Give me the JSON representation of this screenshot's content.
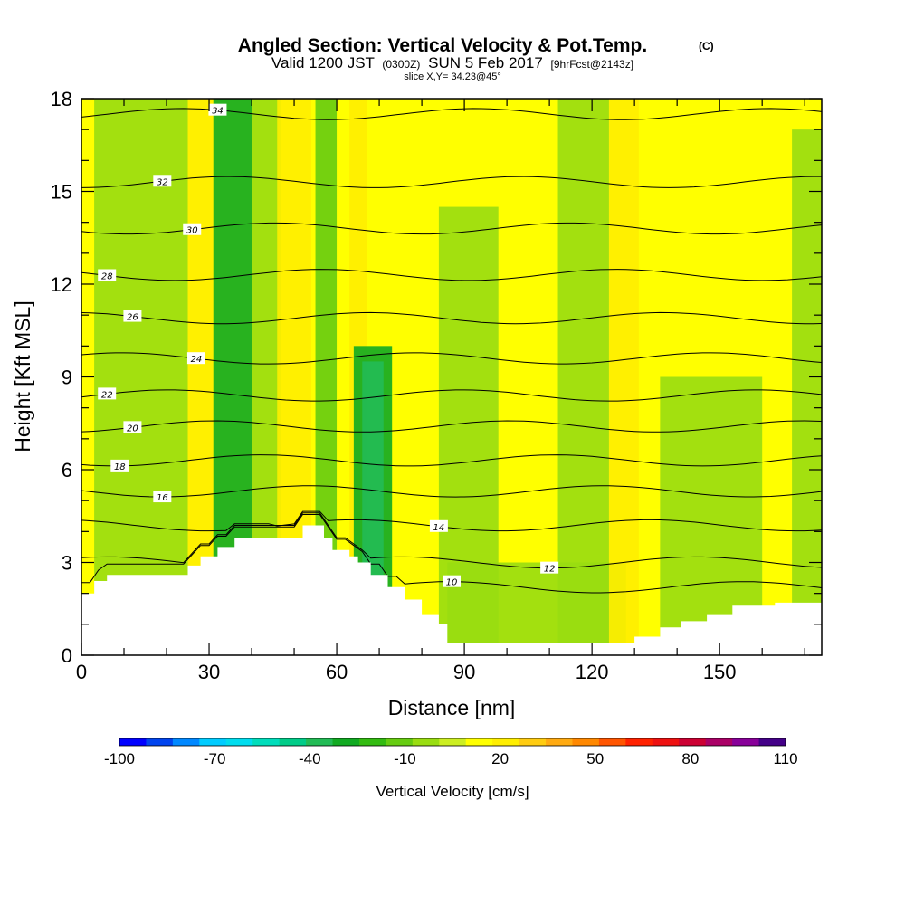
{
  "chart_data": {
    "type": "heatmap",
    "title": "Angled Section: Vertical Velocity & Pot.Temp.",
    "title_units": "(C)",
    "subtitle": {
      "valid": "Valid 1200 JST",
      "utc": "(0300Z)",
      "date": "SUN 5 Feb 2017",
      "forecast": "[9hrFcst@2143z]"
    },
    "slice": "slice X,Y= 34.23@45°",
    "xlabel": "Distance [nm]",
    "ylabel": "Height [Kft MSL]",
    "xlim": [
      0,
      174
    ],
    "ylim": [
      0,
      18
    ],
    "x_ticks": [
      0,
      30,
      60,
      90,
      120,
      150
    ],
    "y_ticks": [
      0,
      3,
      6,
      9,
      12,
      15,
      18
    ],
    "colorbar": {
      "label": "Vertical Velocity [cm/s]",
      "tick_labels": [
        "-100",
        "-70",
        "-40",
        "-10",
        "20",
        "50",
        "80",
        "110"
      ],
      "range": [
        -100,
        110
      ],
      "colors": [
        "#0000ff",
        "#0044ee",
        "#0088ff",
        "#00ccff",
        "#00ddee",
        "#00ddbb",
        "#00cc88",
        "#22bb55",
        "#11aa22",
        "#33bb11",
        "#66cc11",
        "#99dd11",
        "#ccee22",
        "#ffff00",
        "#ffee00",
        "#ffcc11",
        "#ffaa11",
        "#ff8800",
        "#ff5500",
        "#ff2200",
        "#ee1111",
        "#cc0033",
        "#aa0066",
        "#880099",
        "#440088"
      ]
    },
    "velocity_bands": [
      {
        "x": [
          3,
          25
        ],
        "v": -5,
        "top": 18
      },
      {
        "x": [
          25,
          31
        ],
        "v": 25,
        "top": 18
      },
      {
        "x": [
          31,
          40
        ],
        "v": -25,
        "top": 18
      },
      {
        "x": [
          40,
          47
        ],
        "v": -5,
        "top": 18
      },
      {
        "x": [
          46,
          54
        ],
        "v": 25,
        "top": 18
      },
      {
        "x": [
          55,
          60
        ],
        "v": -15,
        "top": 18
      },
      {
        "x": [
          63,
          67
        ],
        "v": 25,
        "top": 18
      },
      {
        "x": [
          64,
          73
        ],
        "v": -25,
        "top": 10
      },
      {
        "x": [
          66,
          71
        ],
        "v": -40,
        "top": 9.5
      },
      {
        "x": [
          84,
          98
        ],
        "v": -5,
        "top": 14.5
      },
      {
        "x": [
          86,
          128
        ],
        "v": -5,
        "top": 3
      },
      {
        "x": [
          112,
          124
        ],
        "v": -5,
        "top": 18
      },
      {
        "x": [
          124,
          131
        ],
        "v": 25,
        "top": 18
      },
      {
        "x": [
          136,
          160
        ],
        "v": -5,
        "top": 9
      },
      {
        "x": [
          167,
          174
        ],
        "v": -5,
        "top": 17
      }
    ],
    "theta_contours": [
      {
        "value": 10,
        "height": 2.2,
        "label_x": 87
      },
      {
        "value": 12,
        "height": 3.0,
        "label_x": 110
      },
      {
        "value": 14,
        "height": 4.2,
        "label_x": 84
      },
      {
        "value": 16,
        "height": 5.3,
        "label_x": 19
      },
      {
        "value": 18,
        "height": 6.3,
        "label_x": 9
      },
      {
        "value": 20,
        "height": 7.4,
        "label_x": 12
      },
      {
        "value": 22,
        "height": 8.4,
        "label_x": 6
      },
      {
        "value": 24,
        "height": 9.6,
        "label_x": 27
      },
      {
        "value": 26,
        "height": 10.9,
        "label_x": 12
      },
      {
        "value": 28,
        "height": 12.3,
        "label_x": 6
      },
      {
        "value": 30,
        "height": 13.8,
        "label_x": 26
      },
      {
        "value": 32,
        "height": 15.3,
        "label_x": 19
      },
      {
        "value": 34,
        "height": 17.5,
        "label_x": 32
      }
    ],
    "terrain": [
      [
        0,
        2.0
      ],
      [
        3,
        2.0
      ],
      [
        3,
        2.4
      ],
      [
        6,
        2.4
      ],
      [
        6,
        2.6
      ],
      [
        25,
        2.6
      ],
      [
        25,
        2.9
      ],
      [
        28,
        2.9
      ],
      [
        28,
        3.2
      ],
      [
        32,
        3.2
      ],
      [
        32,
        3.5
      ],
      [
        36,
        3.5
      ],
      [
        36,
        3.8
      ],
      [
        52,
        3.8
      ],
      [
        52,
        4.2
      ],
      [
        57,
        4.2
      ],
      [
        57,
        3.8
      ],
      [
        59,
        3.8
      ],
      [
        59,
        3.4
      ],
      [
        63,
        3.4
      ],
      [
        63,
        3.2
      ],
      [
        65,
        3.2
      ],
      [
        65,
        3.0
      ],
      [
        68,
        3.0
      ],
      [
        68,
        2.6
      ],
      [
        72,
        2.6
      ],
      [
        72,
        2.2
      ],
      [
        76,
        2.2
      ],
      [
        76,
        1.8
      ],
      [
        80,
        1.8
      ],
      [
        80,
        1.3
      ],
      [
        84,
        1.3
      ],
      [
        84,
        1.0
      ],
      [
        86,
        1.0
      ],
      [
        86,
        0.4
      ],
      [
        130,
        0.4
      ],
      [
        130,
        0.6
      ],
      [
        136,
        0.6
      ],
      [
        136,
        0.9
      ],
      [
        141,
        0.9
      ],
      [
        141,
        1.1
      ],
      [
        147,
        1.1
      ],
      [
        147,
        1.3
      ],
      [
        153,
        1.3
      ],
      [
        153,
        1.6
      ],
      [
        163,
        1.6
      ],
      [
        163,
        1.7
      ],
      [
        174,
        1.7
      ]
    ]
  }
}
